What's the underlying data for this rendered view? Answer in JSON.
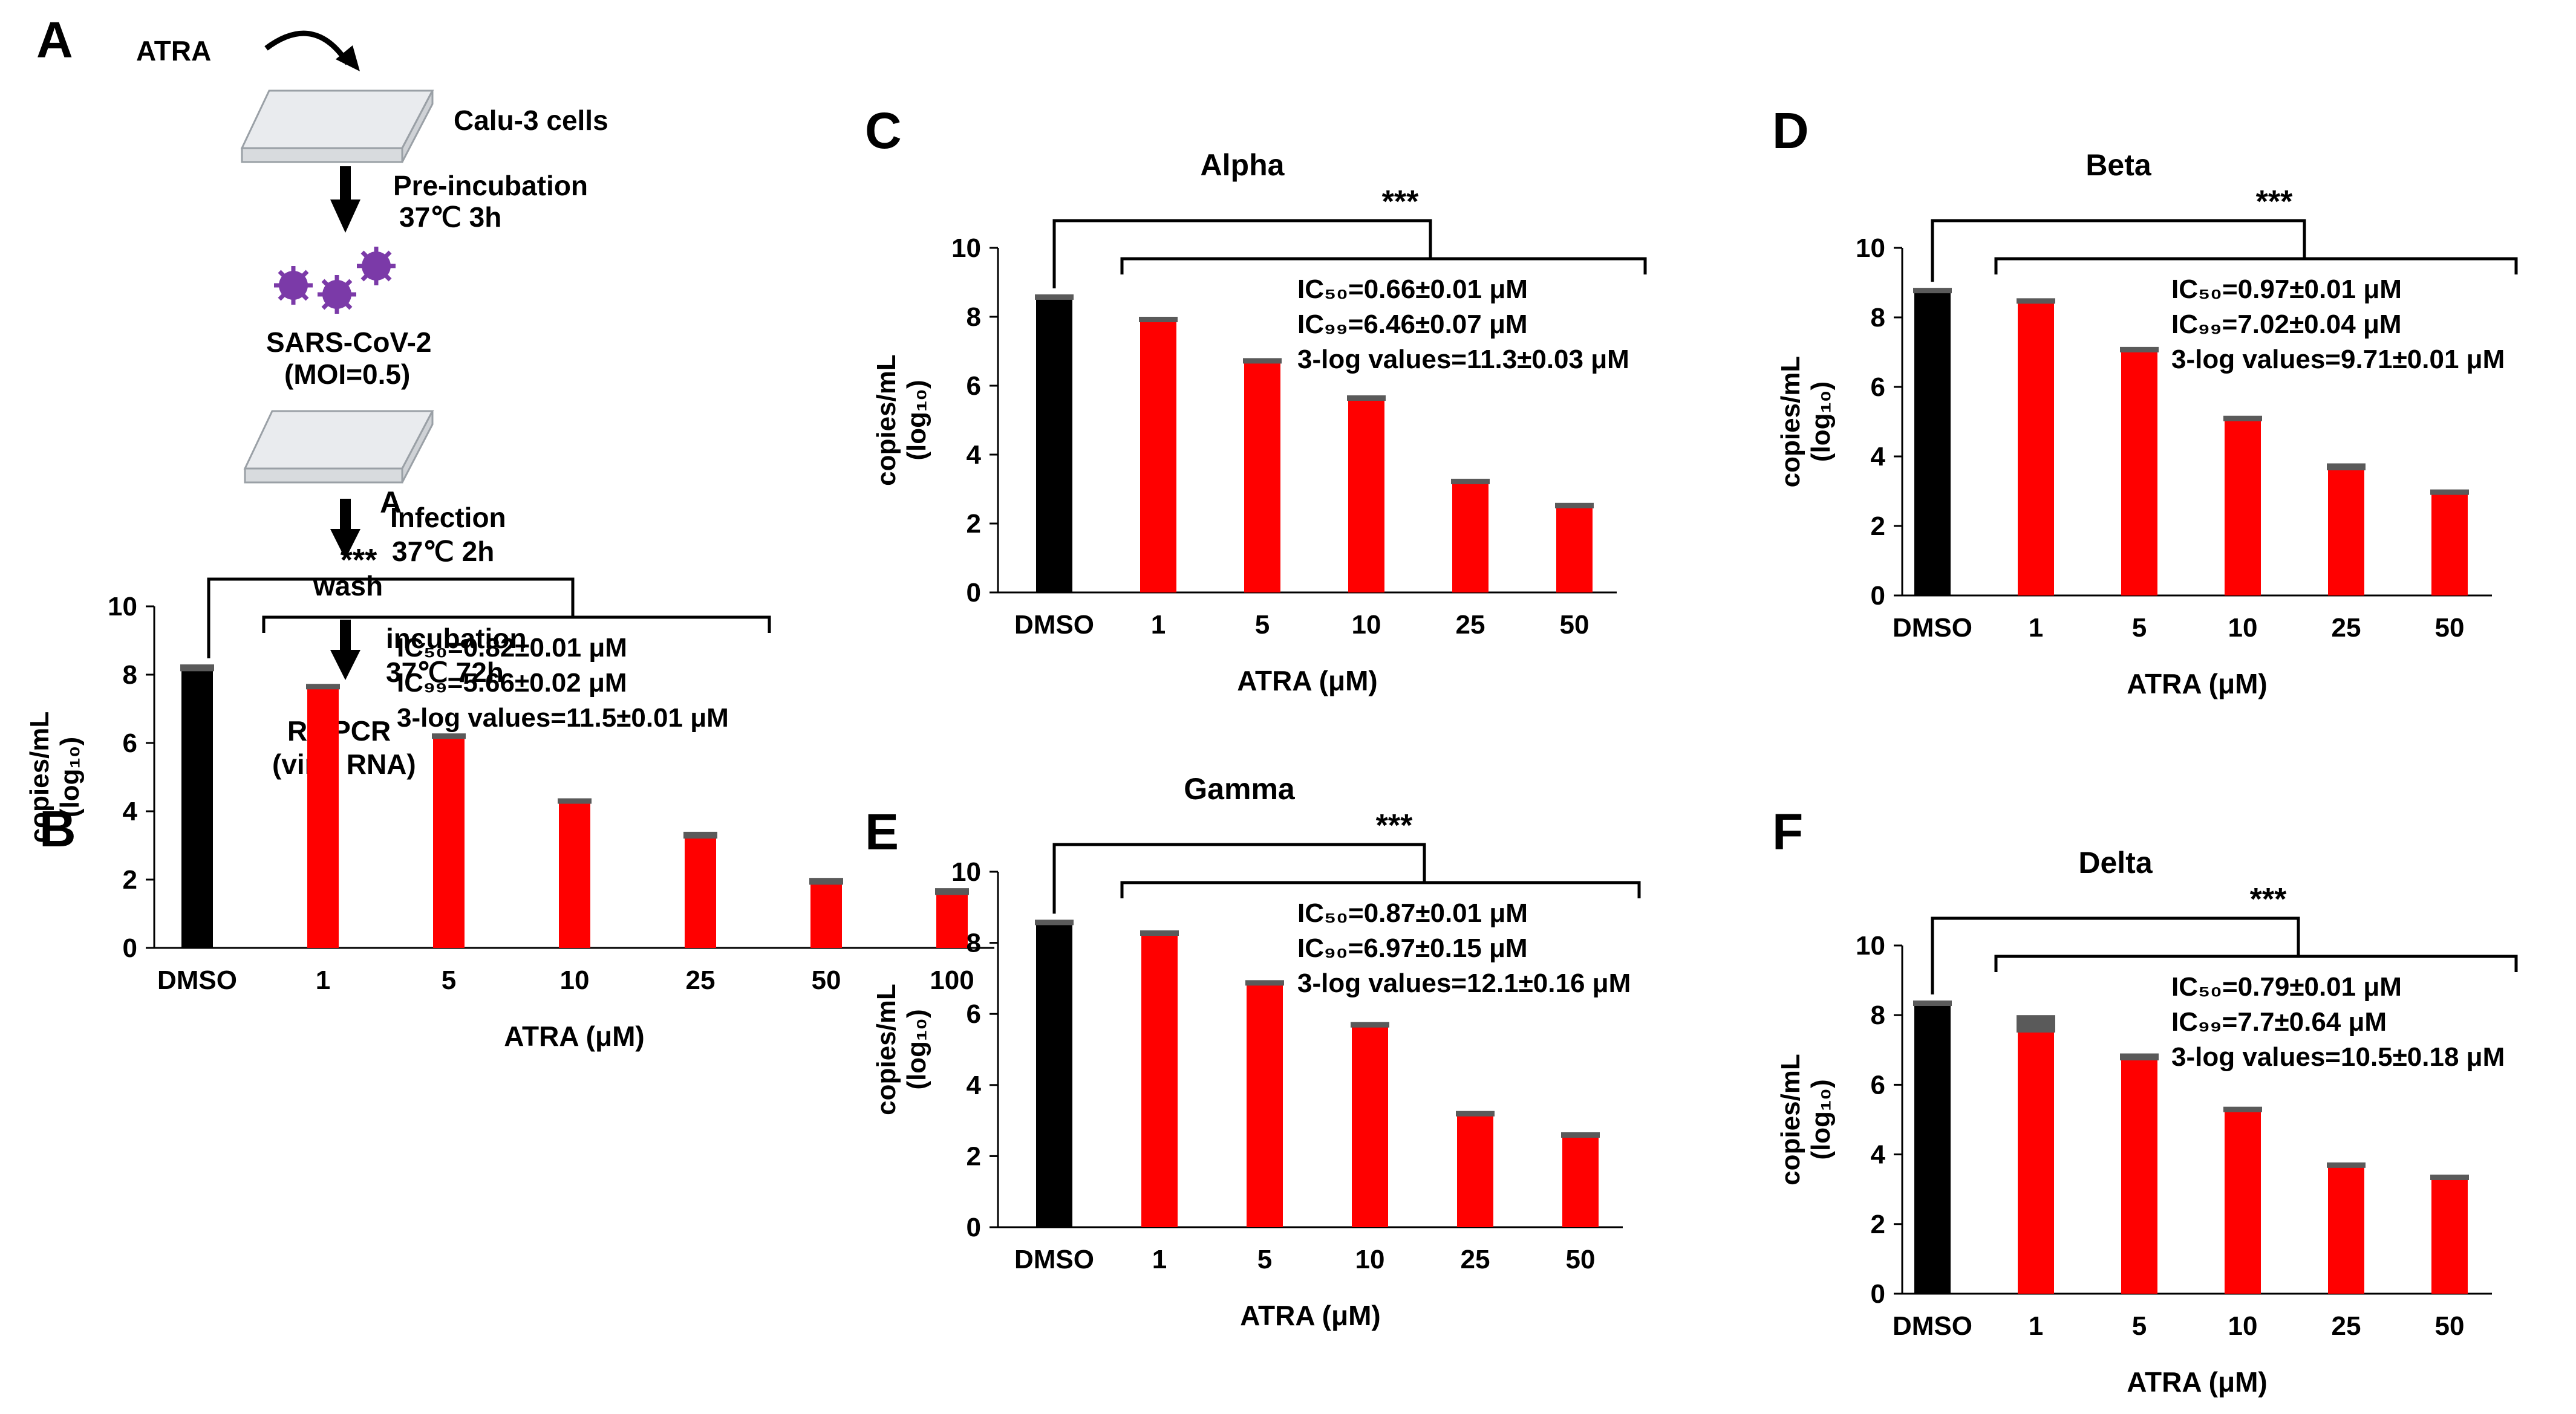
{
  "panel_letters": {
    "a": "A",
    "b": "B",
    "c": "C",
    "d": "D",
    "e": "E",
    "f": "F"
  },
  "schematic": {
    "drug": "ATRA",
    "cells": "Calu-3  cells",
    "step1_label": "Pre-incubation",
    "step1_cond": "37℃ 3h",
    "virus": "SARS-CoV-2",
    "moi": "(MOI=0.5)",
    "step2_label": "Infection",
    "step2_cond": "37℃ 2h",
    "wash": "wash",
    "step3_label": "incubation",
    "step3_cond": "37℃ 72h",
    "readout1": "RT-PCR",
    "readout2": "(viral RNA)",
    "colors": {
      "plate": "#eceef0",
      "virus": "#7b3aa8",
      "arrow": "#000000"
    }
  },
  "colors": {
    "control_bar": "#000000",
    "treated_bar": "#ff0000",
    "error_cap": "#5a5a5a",
    "axis": "#000000"
  },
  "chart_data": [
    {
      "panel": "B",
      "type": "bar",
      "title": "A",
      "categories": [
        "DMSO",
        "1",
        "5",
        "10",
        "25",
        "50",
        "100"
      ],
      "values": [
        8.2,
        7.65,
        6.2,
        4.3,
        3.3,
        1.95,
        1.65
      ],
      "errors": [
        0.1,
        0.08,
        0.08,
        0.08,
        0.1,
        0.1,
        0.1
      ],
      "xlabel": "ATRA (μM)",
      "ylabel": "copies/mL",
      "ylabel2": "(log₁₀)",
      "ylim": [
        0,
        10
      ],
      "yticks": [
        0,
        2,
        4,
        6,
        8,
        10
      ],
      "significance": "***",
      "annotations": [
        "IC₅₀=0.82±0.01 μM",
        "IC₉₉=5.66±0.02 μM",
        "3-log values=11.5±0.01 μM"
      ]
    },
    {
      "panel": "C",
      "type": "bar",
      "title": "Alpha",
      "categories": [
        "DMSO",
        "1",
        "5",
        "10",
        "25",
        "50"
      ],
      "values": [
        8.6,
        7.95,
        6.75,
        5.65,
        3.25,
        2.55
      ],
      "errors": [
        0.05,
        0.05,
        0.05,
        0.07,
        0.05,
        0.05
      ],
      "xlabel": "ATRA (μM)",
      "ylabel": "copies/mL",
      "ylabel2": "(log₁₀)",
      "ylim": [
        0,
        10
      ],
      "yticks": [
        0,
        2,
        4,
        6,
        8,
        10
      ],
      "significance": "***",
      "annotations": [
        "IC₅₀=0.66±0.01 μM",
        "IC₉₉=6.46±0.07 μM",
        "3-log values=11.3±0.03 μM"
      ]
    },
    {
      "panel": "D",
      "type": "bar",
      "title": "Beta",
      "categories": [
        "DMSO",
        "1",
        "5",
        "10",
        "25",
        "50"
      ],
      "values": [
        8.8,
        8.5,
        7.1,
        5.1,
        3.7,
        3.0
      ],
      "errors": [
        0.05,
        0.05,
        0.05,
        0.07,
        0.1,
        0.05
      ],
      "xlabel": "ATRA (μM)",
      "ylabel": "copies/mL",
      "ylabel2": "(log₁₀)",
      "ylim": [
        0,
        10
      ],
      "yticks": [
        0,
        2,
        4,
        6,
        8,
        10
      ],
      "significance": "***",
      "annotations": [
        "IC₅₀=0.97±0.01 μM",
        "IC₉₉=7.02±0.04 μM",
        "3-log values=9.71±0.01 μM"
      ]
    },
    {
      "panel": "E",
      "type": "bar",
      "title": "Gamma",
      "categories": [
        "DMSO",
        "1",
        "5",
        "10",
        "25",
        "50"
      ],
      "values": [
        8.6,
        8.3,
        6.9,
        5.7,
        3.2,
        2.6
      ],
      "errors": [
        0.05,
        0.05,
        0.05,
        0.07,
        0.07,
        0.07
      ],
      "xlabel": "ATRA (μM)",
      "ylabel": "copies/mL",
      "ylabel2": "(log₁₀)",
      "ylim": [
        0,
        10
      ],
      "yticks": [
        0,
        2,
        4,
        6,
        8,
        10
      ],
      "significance": "***",
      "annotations": [
        "IC₅₀=0.87±0.01 μM",
        "IC₉₀=6.97±0.15 μM",
        "3-log values=12.1±0.16 μM"
      ]
    },
    {
      "panel": "F",
      "type": "bar",
      "title": "Delta",
      "categories": [
        "DMSO",
        "1",
        "5",
        "10",
        "25",
        "50"
      ],
      "values": [
        8.35,
        7.75,
        6.8,
        5.3,
        3.7,
        3.35
      ],
      "errors": [
        0.07,
        0.25,
        0.1,
        0.07,
        0.07,
        0.07
      ],
      "xlabel": "ATRA (μM)",
      "ylabel": "copies/mL",
      "ylabel2": "(log₁₀)",
      "ylim": [
        0,
        10
      ],
      "yticks": [
        0,
        2,
        4,
        6,
        8,
        10
      ],
      "significance": "***",
      "annotations": [
        "IC₅₀=0.79±0.01 μM",
        "IC₉₉=7.7±0.64 μM",
        "3-log values=10.5±0.18 μM"
      ]
    }
  ]
}
